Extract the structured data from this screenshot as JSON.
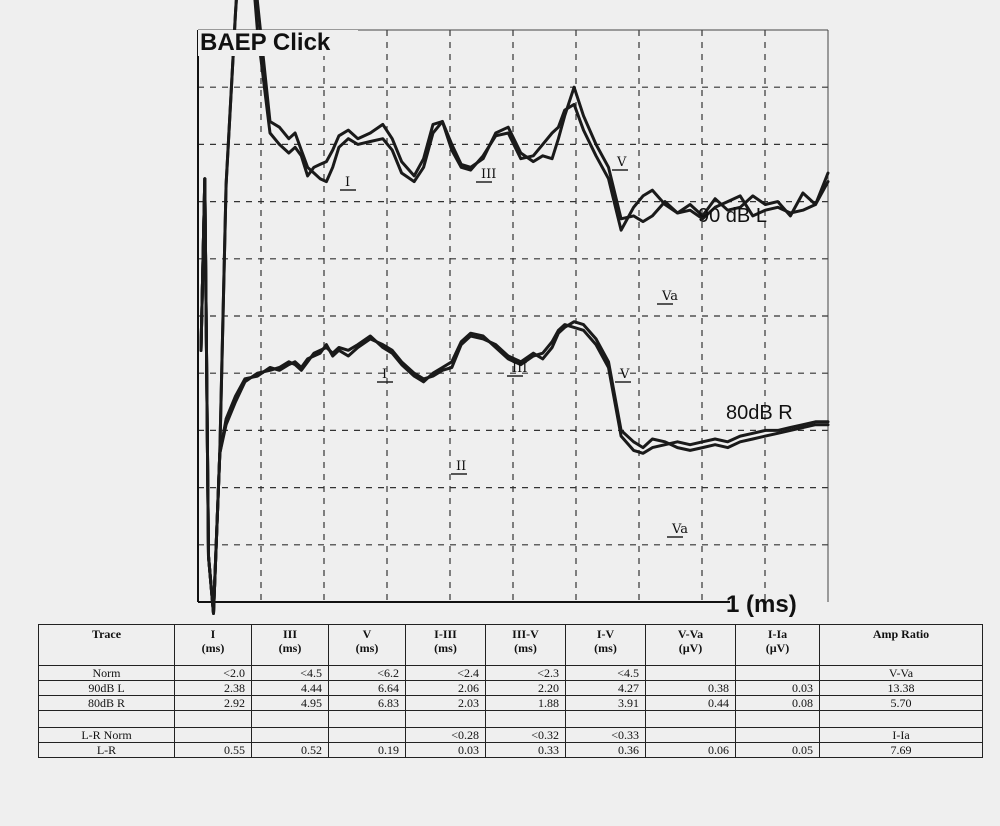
{
  "chart_data": {
    "type": "line",
    "title": "BAEP Click",
    "xlabel": "1  (ms)",
    "grid": true,
    "grid_columns": 10,
    "grid_rows": 10,
    "series": [
      {
        "name": "90 dB L",
        "wave_labels": [
          "I",
          "III",
          "V",
          "Va"
        ],
        "traces": [
          {
            "x": [
              0.0,
              0.06,
              0.12,
              0.2,
              0.3,
              0.4,
              0.55,
              0.7,
              0.9,
              1.1,
              1.25,
              1.4,
              1.5,
              1.6,
              1.7,
              1.8,
              1.9,
              2.0,
              2.1,
              2.2,
              2.35,
              2.5,
              2.7,
              2.9,
              3.05,
              3.2,
              3.4,
              3.55,
              3.7,
              3.85,
              4.0,
              4.15,
              4.3,
              4.5,
              4.7,
              4.9,
              5.1,
              5.3,
              5.45,
              5.6,
              5.7,
              5.8,
              5.95,
              6.1,
              6.3,
              6.5,
              6.7,
              6.9,
              7.05,
              7.2,
              7.4,
              7.6,
              7.8,
              8.0,
              8.2,
              8.4,
              8.6,
              8.8,
              9.0,
              9.2,
              9.4,
              9.6,
              9.8,
              10.0
            ],
            "y": [
              0.0,
              3.0,
              -3.6,
              -4.6,
              -1.8,
              2.9,
              5.9,
              8.6,
              6.1,
              4.0,
              3.9,
              3.7,
              3.8,
              3.5,
              3.2,
              3.1,
              3.0,
              2.95,
              3.2,
              3.55,
              3.7,
              3.6,
              3.65,
              3.7,
              3.5,
              3.1,
              2.95,
              3.2,
              3.8,
              4.0,
              3.6,
              3.25,
              3.2,
              3.35,
              3.8,
              3.9,
              3.45,
              3.3,
              3.4,
              3.35,
              3.7,
              4.1,
              4.6,
              4.1,
              3.6,
              3.2,
              2.3,
              2.35,
              2.25,
              2.35,
              2.6,
              2.4,
              2.55,
              2.35,
              2.65,
              2.45,
              2.5,
              2.7,
              2.55,
              2.6,
              2.35,
              2.75,
              2.55,
              3.1
            ]
          },
          {
            "x": [
              0.0,
              0.06,
              0.12,
              0.2,
              0.3,
              0.4,
              0.55,
              0.7,
              0.9,
              1.1,
              1.25,
              1.4,
              1.5,
              1.6,
              1.7,
              1.8,
              1.9,
              2.0,
              2.1,
              2.2,
              2.35,
              2.5,
              2.7,
              2.9,
              3.05,
              3.2,
              3.4,
              3.55,
              3.7,
              3.85,
              4.0,
              4.15,
              4.3,
              4.5,
              4.7,
              4.9,
              5.1,
              5.3,
              5.45,
              5.6,
              5.7,
              5.8,
              5.95,
              6.1,
              6.3,
              6.5,
              6.7,
              6.9,
              7.05,
              7.2,
              7.4,
              7.6,
              7.8,
              8.0,
              8.2,
              8.4,
              8.6,
              8.8,
              9.0,
              9.2,
              9.4,
              9.6,
              9.8,
              10.0
            ],
            "y": [
              0.0,
              3.0,
              -3.6,
              -4.6,
              -1.8,
              2.9,
              5.9,
              8.3,
              5.6,
              3.8,
              3.6,
              3.45,
              3.55,
              3.4,
              3.05,
              3.2,
              3.25,
              3.3,
              3.5,
              3.75,
              3.85,
              3.7,
              3.8,
              3.95,
              3.7,
              3.3,
              3.05,
              3.35,
              3.95,
              4.0,
              3.5,
              3.2,
              3.15,
              3.4,
              3.75,
              3.8,
              3.35,
              3.4,
              3.6,
              3.8,
              3.9,
              4.2,
              4.3,
              3.85,
              3.4,
              3.0,
              2.1,
              2.5,
              2.7,
              2.8,
              2.55,
              2.4,
              2.45,
              2.3,
              2.5,
              2.6,
              2.7,
              2.35,
              2.45,
              2.5,
              2.4,
              2.45,
              2.55,
              2.95
            ]
          }
        ]
      },
      {
        "name": "80dB R",
        "wave_labels": [
          "I",
          "II",
          "III",
          "V",
          "Va"
        ],
        "traces": [
          {
            "x": [
              0.0,
              0.06,
              0.12,
              0.2,
              0.3,
              0.4,
              0.55,
              0.7,
              0.9,
              1.1,
              1.25,
              1.4,
              1.5,
              1.6,
              1.7,
              1.8,
              1.9,
              2.0,
              2.1,
              2.2,
              2.35,
              2.5,
              2.7,
              2.9,
              3.05,
              3.2,
              3.4,
              3.55,
              3.7,
              3.85,
              4.0,
              4.15,
              4.3,
              4.5,
              4.7,
              4.9,
              5.1,
              5.3,
              5.45,
              5.6,
              5.7,
              5.8,
              5.95,
              6.1,
              6.3,
              6.5,
              6.7,
              6.9,
              7.05,
              7.2,
              7.4,
              7.6,
              7.8,
              8.0,
              8.2,
              8.4,
              8.6,
              8.8,
              9.0,
              9.2,
              9.4,
              9.6,
              9.8,
              10.0
            ],
            "y": [
              0.0,
              3.0,
              -3.6,
              -4.6,
              -1.8,
              -1.2,
              -0.8,
              -0.5,
              -0.45,
              -0.3,
              -0.35,
              -0.25,
              -0.2,
              -0.3,
              -0.15,
              -0.1,
              -0.05,
              0.1,
              -0.1,
              0.0,
              -0.1,
              0.05,
              0.2,
              0.1,
              0.0,
              -0.2,
              -0.4,
              -0.5,
              -0.45,
              -0.35,
              -0.3,
              0.1,
              0.25,
              0.2,
              0.1,
              -0.1,
              -0.2,
              -0.05,
              -0.15,
              0.05,
              0.3,
              0.4,
              0.5,
              0.45,
              0.2,
              -0.2,
              -1.4,
              -1.6,
              -1.7,
              -1.55,
              -1.6,
              -1.7,
              -1.75,
              -1.7,
              -1.65,
              -1.7,
              -1.6,
              -1.55,
              -1.5,
              -1.45,
              -1.4,
              -1.35,
              -1.3,
              -1.3
            ]
          },
          {
            "x": [
              0.0,
              0.06,
              0.12,
              0.2,
              0.3,
              0.4,
              0.55,
              0.7,
              0.9,
              1.1,
              1.25,
              1.4,
              1.5,
              1.6,
              1.7,
              1.8,
              1.9,
              2.0,
              2.1,
              2.2,
              2.35,
              2.5,
              2.7,
              2.9,
              3.05,
              3.2,
              3.4,
              3.55,
              3.7,
              3.85,
              4.0,
              4.15,
              4.3,
              4.5,
              4.7,
              4.9,
              5.1,
              5.3,
              5.45,
              5.6,
              5.7,
              5.8,
              5.95,
              6.1,
              6.3,
              6.5,
              6.7,
              6.9,
              7.05,
              7.2,
              7.4,
              7.6,
              7.8,
              8.0,
              8.2,
              8.4,
              8.6,
              8.8,
              9.0,
              9.2,
              9.4,
              9.6,
              9.8,
              10.0
            ],
            "y": [
              0.0,
              3.0,
              -3.6,
              -4.6,
              -1.8,
              -1.3,
              -0.9,
              -0.55,
              -0.4,
              -0.35,
              -0.3,
              -0.2,
              -0.25,
              -0.35,
              -0.2,
              -0.05,
              0.0,
              0.05,
              -0.05,
              0.05,
              0.0,
              0.1,
              0.25,
              0.05,
              -0.05,
              -0.25,
              -0.45,
              -0.55,
              -0.4,
              -0.3,
              -0.2,
              0.15,
              0.3,
              0.25,
              0.05,
              -0.15,
              -0.25,
              -0.1,
              -0.05,
              0.15,
              0.35,
              0.45,
              0.4,
              0.35,
              0.1,
              -0.3,
              -1.5,
              -1.75,
              -1.8,
              -1.7,
              -1.65,
              -1.6,
              -1.65,
              -1.6,
              -1.55,
              -1.6,
              -1.5,
              -1.45,
              -1.4,
              -1.4,
              -1.35,
              -1.3,
              -1.25,
              -1.25
            ]
          }
        ]
      }
    ]
  },
  "table": {
    "headers": [
      {
        "label": "Trace",
        "unit": ""
      },
      {
        "label": "I",
        "unit": "(ms)"
      },
      {
        "label": "III",
        "unit": "(ms)"
      },
      {
        "label": "V",
        "unit": "(ms)"
      },
      {
        "label": "I-III",
        "unit": "(ms)"
      },
      {
        "label": "III-V",
        "unit": "(ms)"
      },
      {
        "label": "I-V",
        "unit": "(ms)"
      },
      {
        "label": "V-Va",
        "unit": "(µV)"
      },
      {
        "label": "I-Ia",
        "unit": "(µV)"
      },
      {
        "label": "Amp Ratio",
        "unit": ""
      }
    ],
    "rows": [
      [
        "Norm",
        "<2.0",
        "<4.5",
        "<6.2",
        "<2.4",
        "<2.3",
        "<4.5",
        "",
        "",
        "V-Va"
      ],
      [
        "90dB L",
        "2.38",
        "4.44",
        "6.64",
        "2.06",
        "2.20",
        "4.27",
        "0.38",
        "0.03",
        "13.38"
      ],
      [
        "80dB R",
        "2.92",
        "4.95",
        "6.83",
        "2.03",
        "1.88",
        "3.91",
        "0.44",
        "0.08",
        "5.70"
      ],
      [
        "",
        "",
        "",
        "",
        "",
        "",
        "",
        "",
        "",
        ""
      ],
      [
        "L-R Norm",
        "",
        "",
        "",
        "<0.28",
        "<0.32",
        "<0.33",
        "",
        "",
        "I-Ia"
      ],
      [
        "L-R",
        "0.55",
        "0.52",
        "0.19",
        "0.03",
        "0.33",
        "0.36",
        "0.06",
        "0.05",
        "7.69"
      ]
    ]
  }
}
